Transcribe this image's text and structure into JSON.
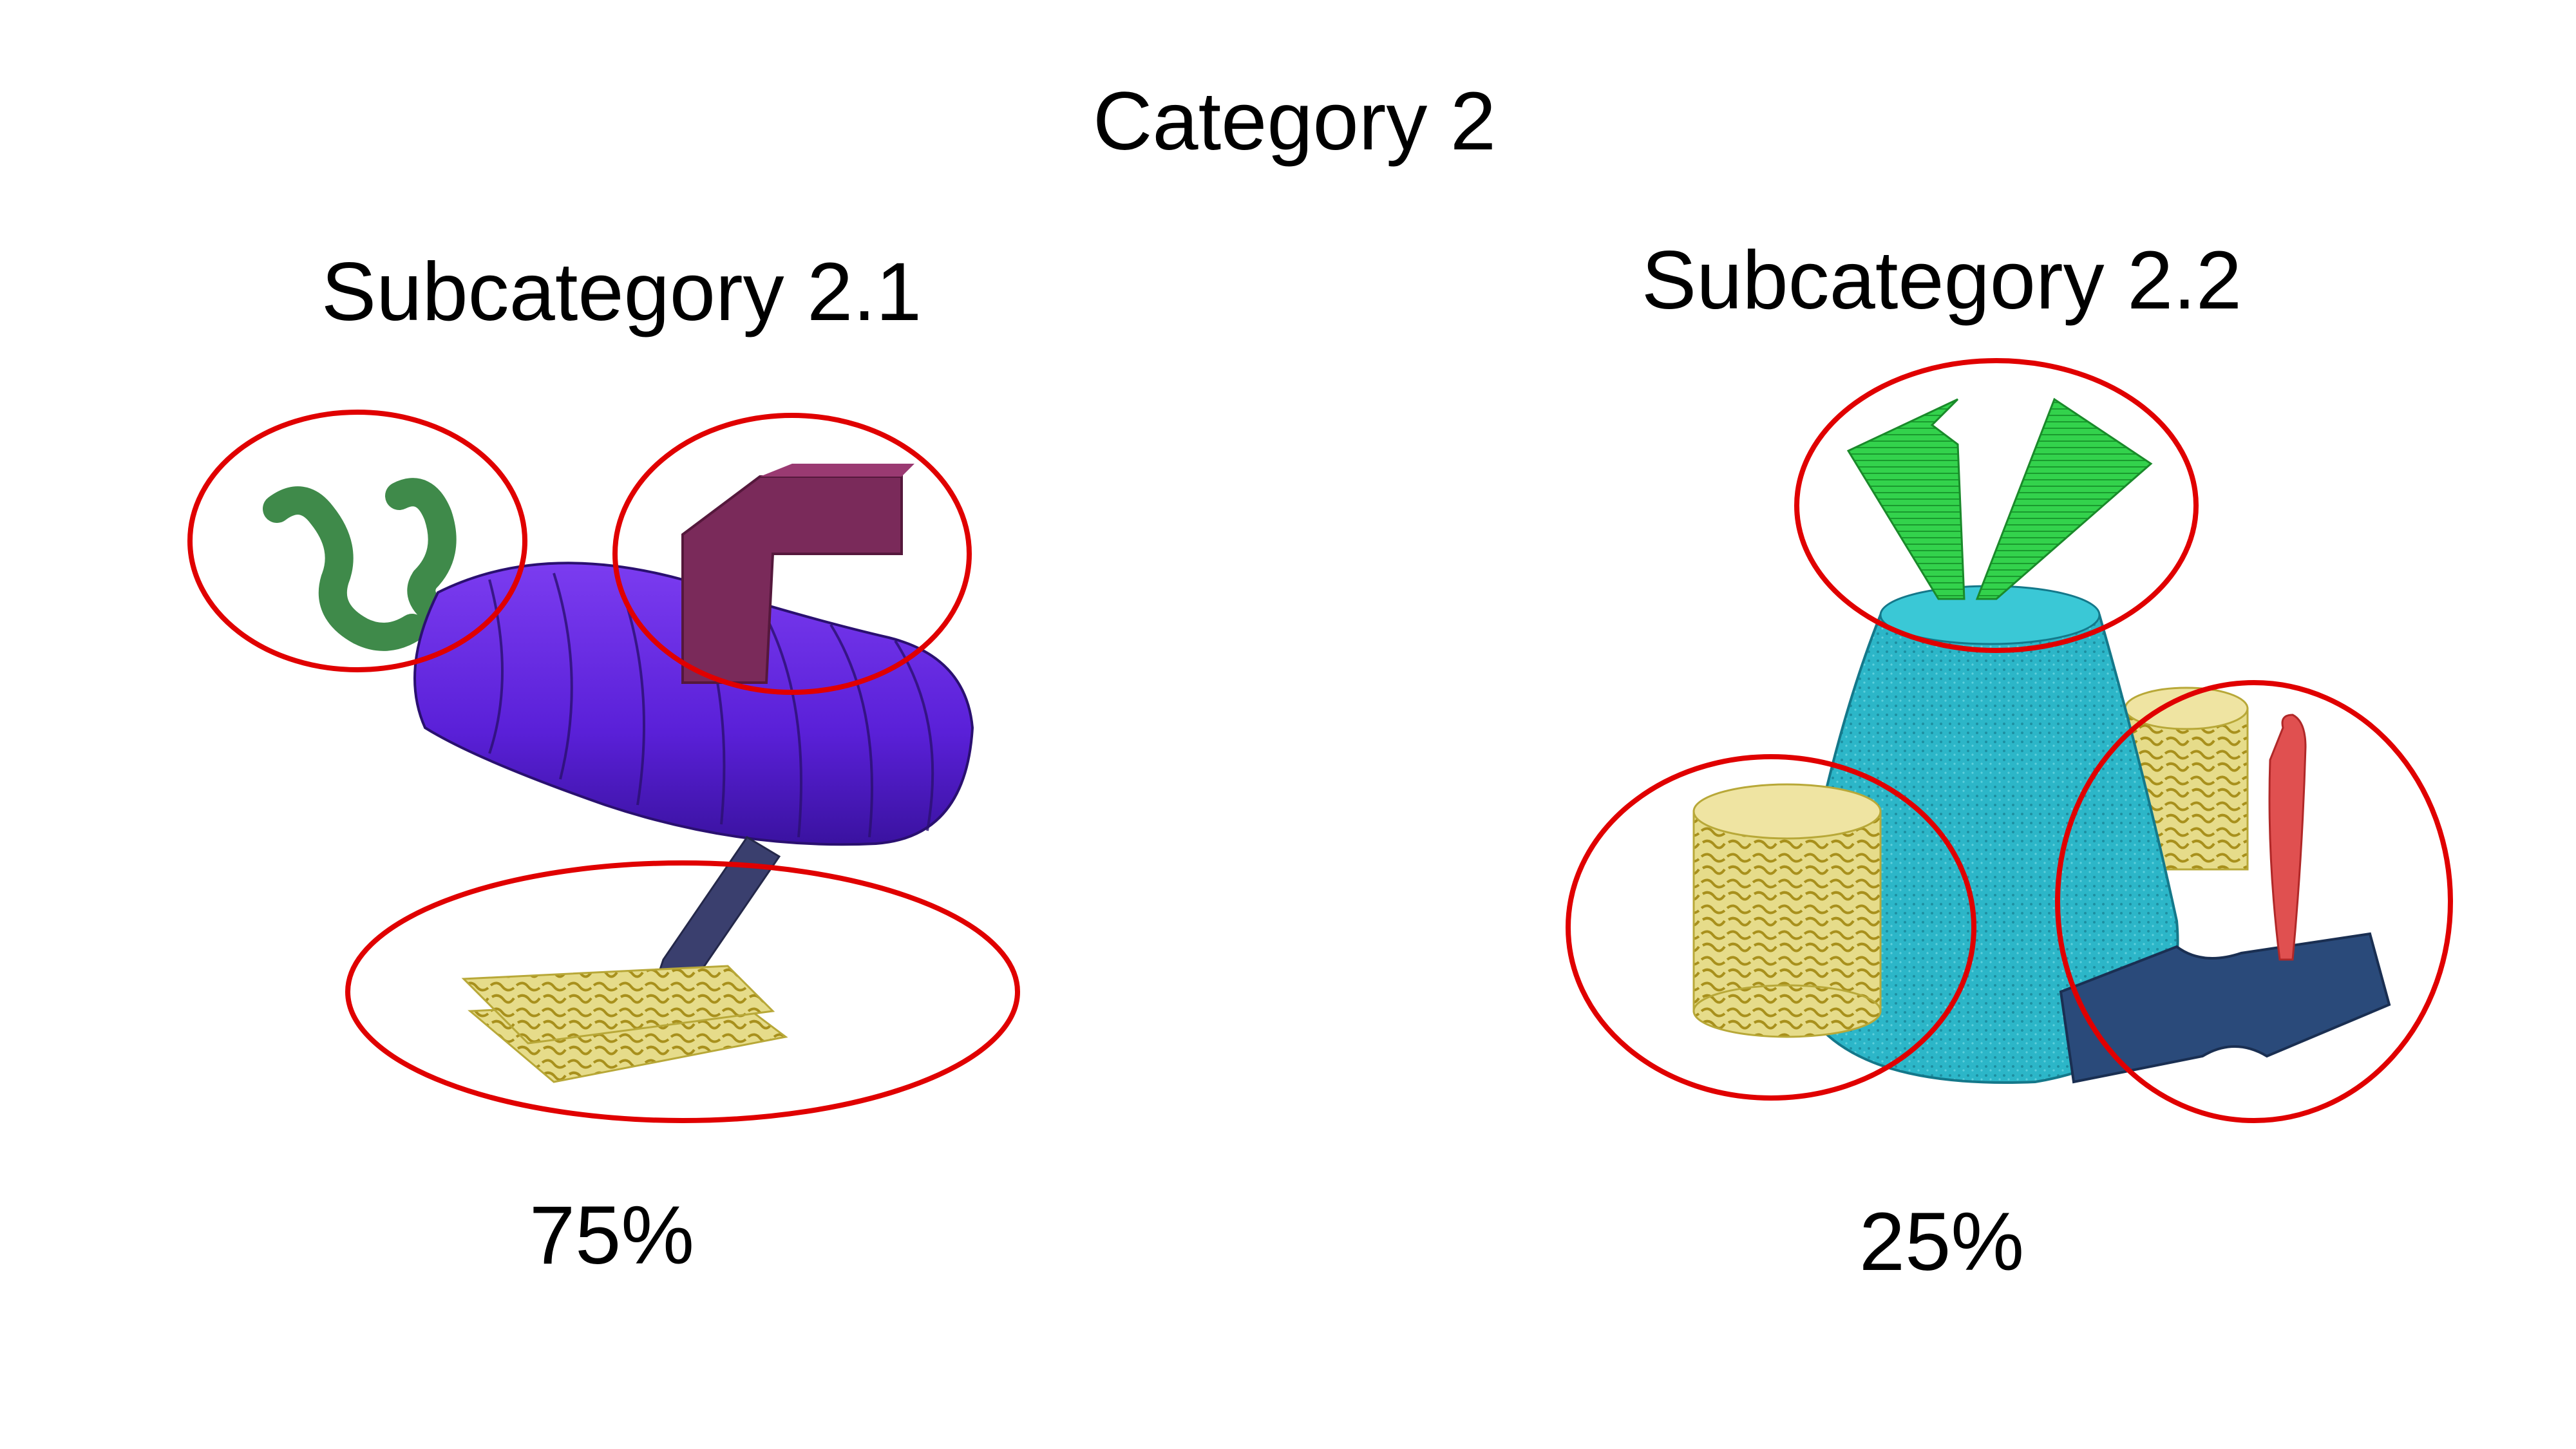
{
  "title": "Category 2",
  "subcategories": [
    {
      "label": "Subcategory 2.1",
      "percent": "75%"
    },
    {
      "label": "Subcategory 2.2",
      "percent": "25%"
    }
  ],
  "colors": {
    "highlight": "#e00000",
    "tube_purple": "#6a28e0",
    "tube_dark": "#2a1070",
    "wavy_green": "#3f8a4a",
    "elbow_maroon": "#7a2a5a",
    "stick_navy": "#3a3f6e",
    "yellow_sheet": "#d8d27a",
    "cone_cyan": "#2ab2c4",
    "cylinder_yellow": "#e8da85",
    "blade_green": "#2fd44a",
    "wedge_navy": "#2a4a7a",
    "paddle_red": "#e05050"
  }
}
